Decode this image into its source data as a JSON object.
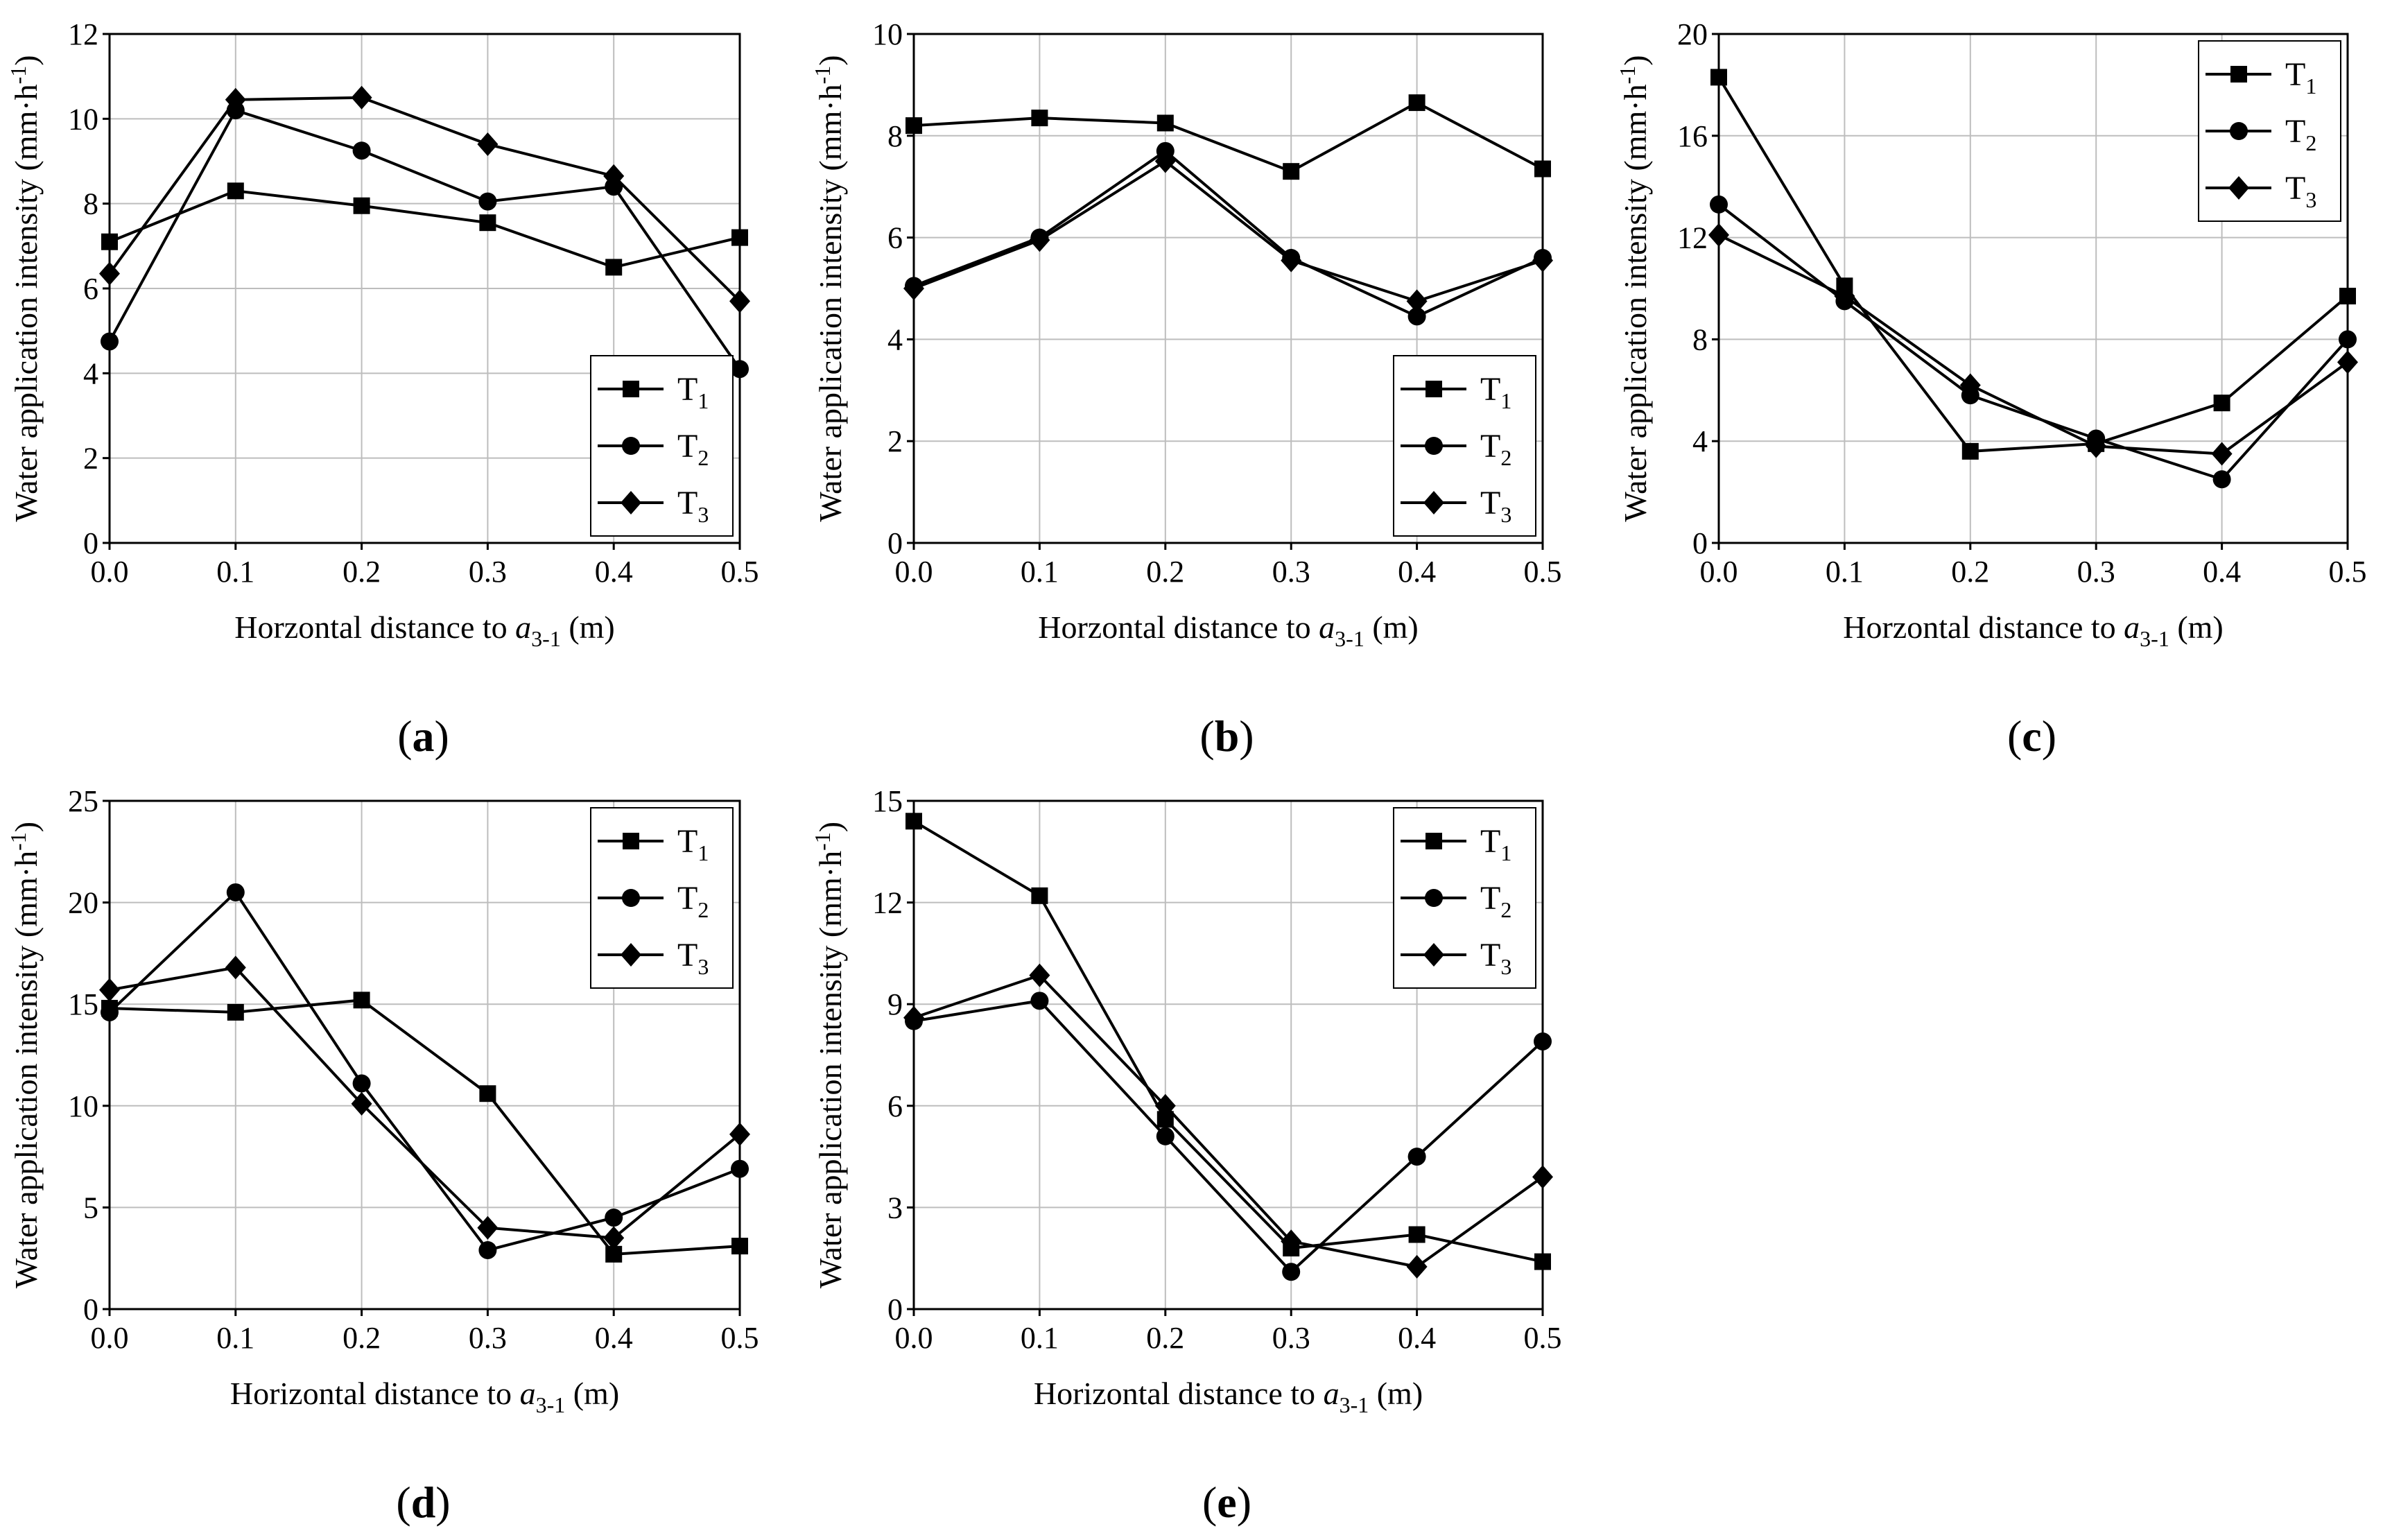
{
  "chart_data": [
    {
      "type": "line",
      "panel_label": "a",
      "xlabel": "Horzontal distance to",
      "xlabel_var": "a",
      "xlabel_sub": "3-1",
      "xlabel_unit": " (m)",
      "ylabel": "Water application intensity (mm·h",
      "ylabel_sup": "-1",
      "ylabel_end": ")",
      "x": [
        0.0,
        0.1,
        0.2,
        0.3,
        0.4,
        0.5
      ],
      "xticks": [
        "0.0",
        "0.1",
        "0.2",
        "0.3",
        "0.4",
        "0.5"
      ],
      "xlim": [
        0,
        0.5
      ],
      "ylim": [
        0,
        12
      ],
      "yticks": [
        0,
        2,
        4,
        6,
        8,
        10,
        12
      ],
      "legend_position": "bottom-right",
      "series": [
        {
          "name": "T",
          "sub": "1",
          "marker": "square",
          "values": [
            7.1,
            8.3,
            7.95,
            7.55,
            6.5,
            7.2
          ]
        },
        {
          "name": "T",
          "sub": "2",
          "marker": "circle",
          "values": [
            4.75,
            10.2,
            9.25,
            8.05,
            8.4,
            4.1
          ]
        },
        {
          "name": "T",
          "sub": "3",
          "marker": "diamond",
          "values": [
            6.35,
            10.45,
            10.5,
            9.4,
            8.65,
            5.7
          ]
        }
      ]
    },
    {
      "type": "line",
      "panel_label": "b",
      "xlabel": "Horzontal distance to",
      "xlabel_var": "a",
      "xlabel_sub": "3-1",
      "xlabel_unit": " (m)",
      "ylabel": "Water application intensity (mm·h",
      "ylabel_sup": "-1",
      "ylabel_end": ")",
      "x": [
        0.0,
        0.1,
        0.2,
        0.3,
        0.4,
        0.5
      ],
      "xticks": [
        "0.0",
        "0.1",
        "0.2",
        "0.3",
        "0.4",
        "0.5"
      ],
      "xlim": [
        0,
        0.5
      ],
      "ylim": [
        0,
        10
      ],
      "yticks": [
        0,
        2,
        4,
        6,
        8,
        10
      ],
      "legend_position": "bottom-right",
      "series": [
        {
          "name": "T",
          "sub": "1",
          "marker": "square",
          "values": [
            8.2,
            8.35,
            8.25,
            7.3,
            8.65,
            7.35
          ]
        },
        {
          "name": "T",
          "sub": "2",
          "marker": "circle",
          "values": [
            5.05,
            6.0,
            7.7,
            5.6,
            4.45,
            5.6
          ]
        },
        {
          "name": "T",
          "sub": "3",
          "marker": "diamond",
          "values": [
            5.0,
            5.95,
            7.5,
            5.55,
            4.75,
            5.55
          ]
        }
      ]
    },
    {
      "type": "line",
      "panel_label": "c",
      "xlabel": "Horzontal distance to",
      "xlabel_var": "a",
      "xlabel_sub": "3-1",
      "xlabel_unit": " (m)",
      "ylabel": "Water application intensity (mm·h",
      "ylabel_sup": "-1",
      "ylabel_end": ")",
      "x": [
        0.0,
        0.1,
        0.2,
        0.3,
        0.4,
        0.5
      ],
      "xticks": [
        "0.0",
        "0.1",
        "0.2",
        "0.3",
        "0.4",
        "0.5"
      ],
      "xlim": [
        0,
        0.5
      ],
      "ylim": [
        0,
        20
      ],
      "yticks": [
        0,
        4,
        8,
        12,
        16,
        20
      ],
      "legend_position": "top-right",
      "series": [
        {
          "name": "T",
          "sub": "1",
          "marker": "square",
          "values": [
            18.3,
            10.1,
            3.6,
            3.9,
            5.5,
            9.7
          ]
        },
        {
          "name": "T",
          "sub": "2",
          "marker": "circle",
          "values": [
            13.3,
            9.5,
            5.8,
            4.1,
            2.5,
            8.0
          ]
        },
        {
          "name": "T",
          "sub": "3",
          "marker": "diamond",
          "values": [
            12.1,
            9.7,
            6.2,
            3.8,
            3.5,
            7.1
          ]
        }
      ]
    },
    {
      "type": "line",
      "panel_label": "d",
      "xlabel": "Horizontal distance to",
      "xlabel_var": "a",
      "xlabel_sub": "3-1",
      "xlabel_unit": " (m)",
      "ylabel": "Water application intensity (mm·h",
      "ylabel_sup": "-1",
      "ylabel_end": ")",
      "x": [
        0.0,
        0.1,
        0.2,
        0.3,
        0.4,
        0.5
      ],
      "xticks": [
        "0.0",
        "0.1",
        "0.2",
        "0.3",
        "0.4",
        "0.5"
      ],
      "xlim": [
        0,
        0.5
      ],
      "ylim": [
        0,
        25
      ],
      "yticks": [
        0,
        5,
        10,
        15,
        20,
        25
      ],
      "legend_position": "top-right",
      "series": [
        {
          "name": "T",
          "sub": "1",
          "marker": "square",
          "values": [
            14.8,
            14.6,
            15.2,
            10.6,
            2.7,
            3.1
          ]
        },
        {
          "name": "T",
          "sub": "2",
          "marker": "circle",
          "values": [
            14.6,
            20.5,
            11.1,
            2.9,
            4.5,
            6.9
          ]
        },
        {
          "name": "T",
          "sub": "3",
          "marker": "diamond",
          "values": [
            15.7,
            16.8,
            10.1,
            4.0,
            3.5,
            8.6
          ]
        }
      ]
    },
    {
      "type": "line",
      "panel_label": "e",
      "xlabel": "Horizontal distance to",
      "xlabel_var": "a",
      "xlabel_sub": "3-1",
      "xlabel_unit": " (m)",
      "ylabel": "Water application intensity (mm·h",
      "ylabel_sup": "-1",
      "ylabel_end": ")",
      "x": [
        0.0,
        0.1,
        0.2,
        0.3,
        0.4,
        0.5
      ],
      "xticks": [
        "0.0",
        "0.1",
        "0.2",
        "0.3",
        "0.4",
        "0.5"
      ],
      "xlim": [
        0,
        0.5
      ],
      "ylim": [
        0,
        15
      ],
      "yticks": [
        0,
        3,
        6,
        9,
        12,
        15
      ],
      "legend_position": "top-right",
      "series": [
        {
          "name": "T",
          "sub": "1",
          "marker": "square",
          "values": [
            14.4,
            12.2,
            5.6,
            1.8,
            2.2,
            1.4
          ]
        },
        {
          "name": "T",
          "sub": "2",
          "marker": "circle",
          "values": [
            8.5,
            9.1,
            5.1,
            1.1,
            4.5,
            7.9
          ]
        },
        {
          "name": "T",
          "sub": "3",
          "marker": "diamond",
          "values": [
            8.6,
            9.85,
            6.0,
            2.0,
            1.25,
            3.9
          ]
        }
      ]
    }
  ]
}
